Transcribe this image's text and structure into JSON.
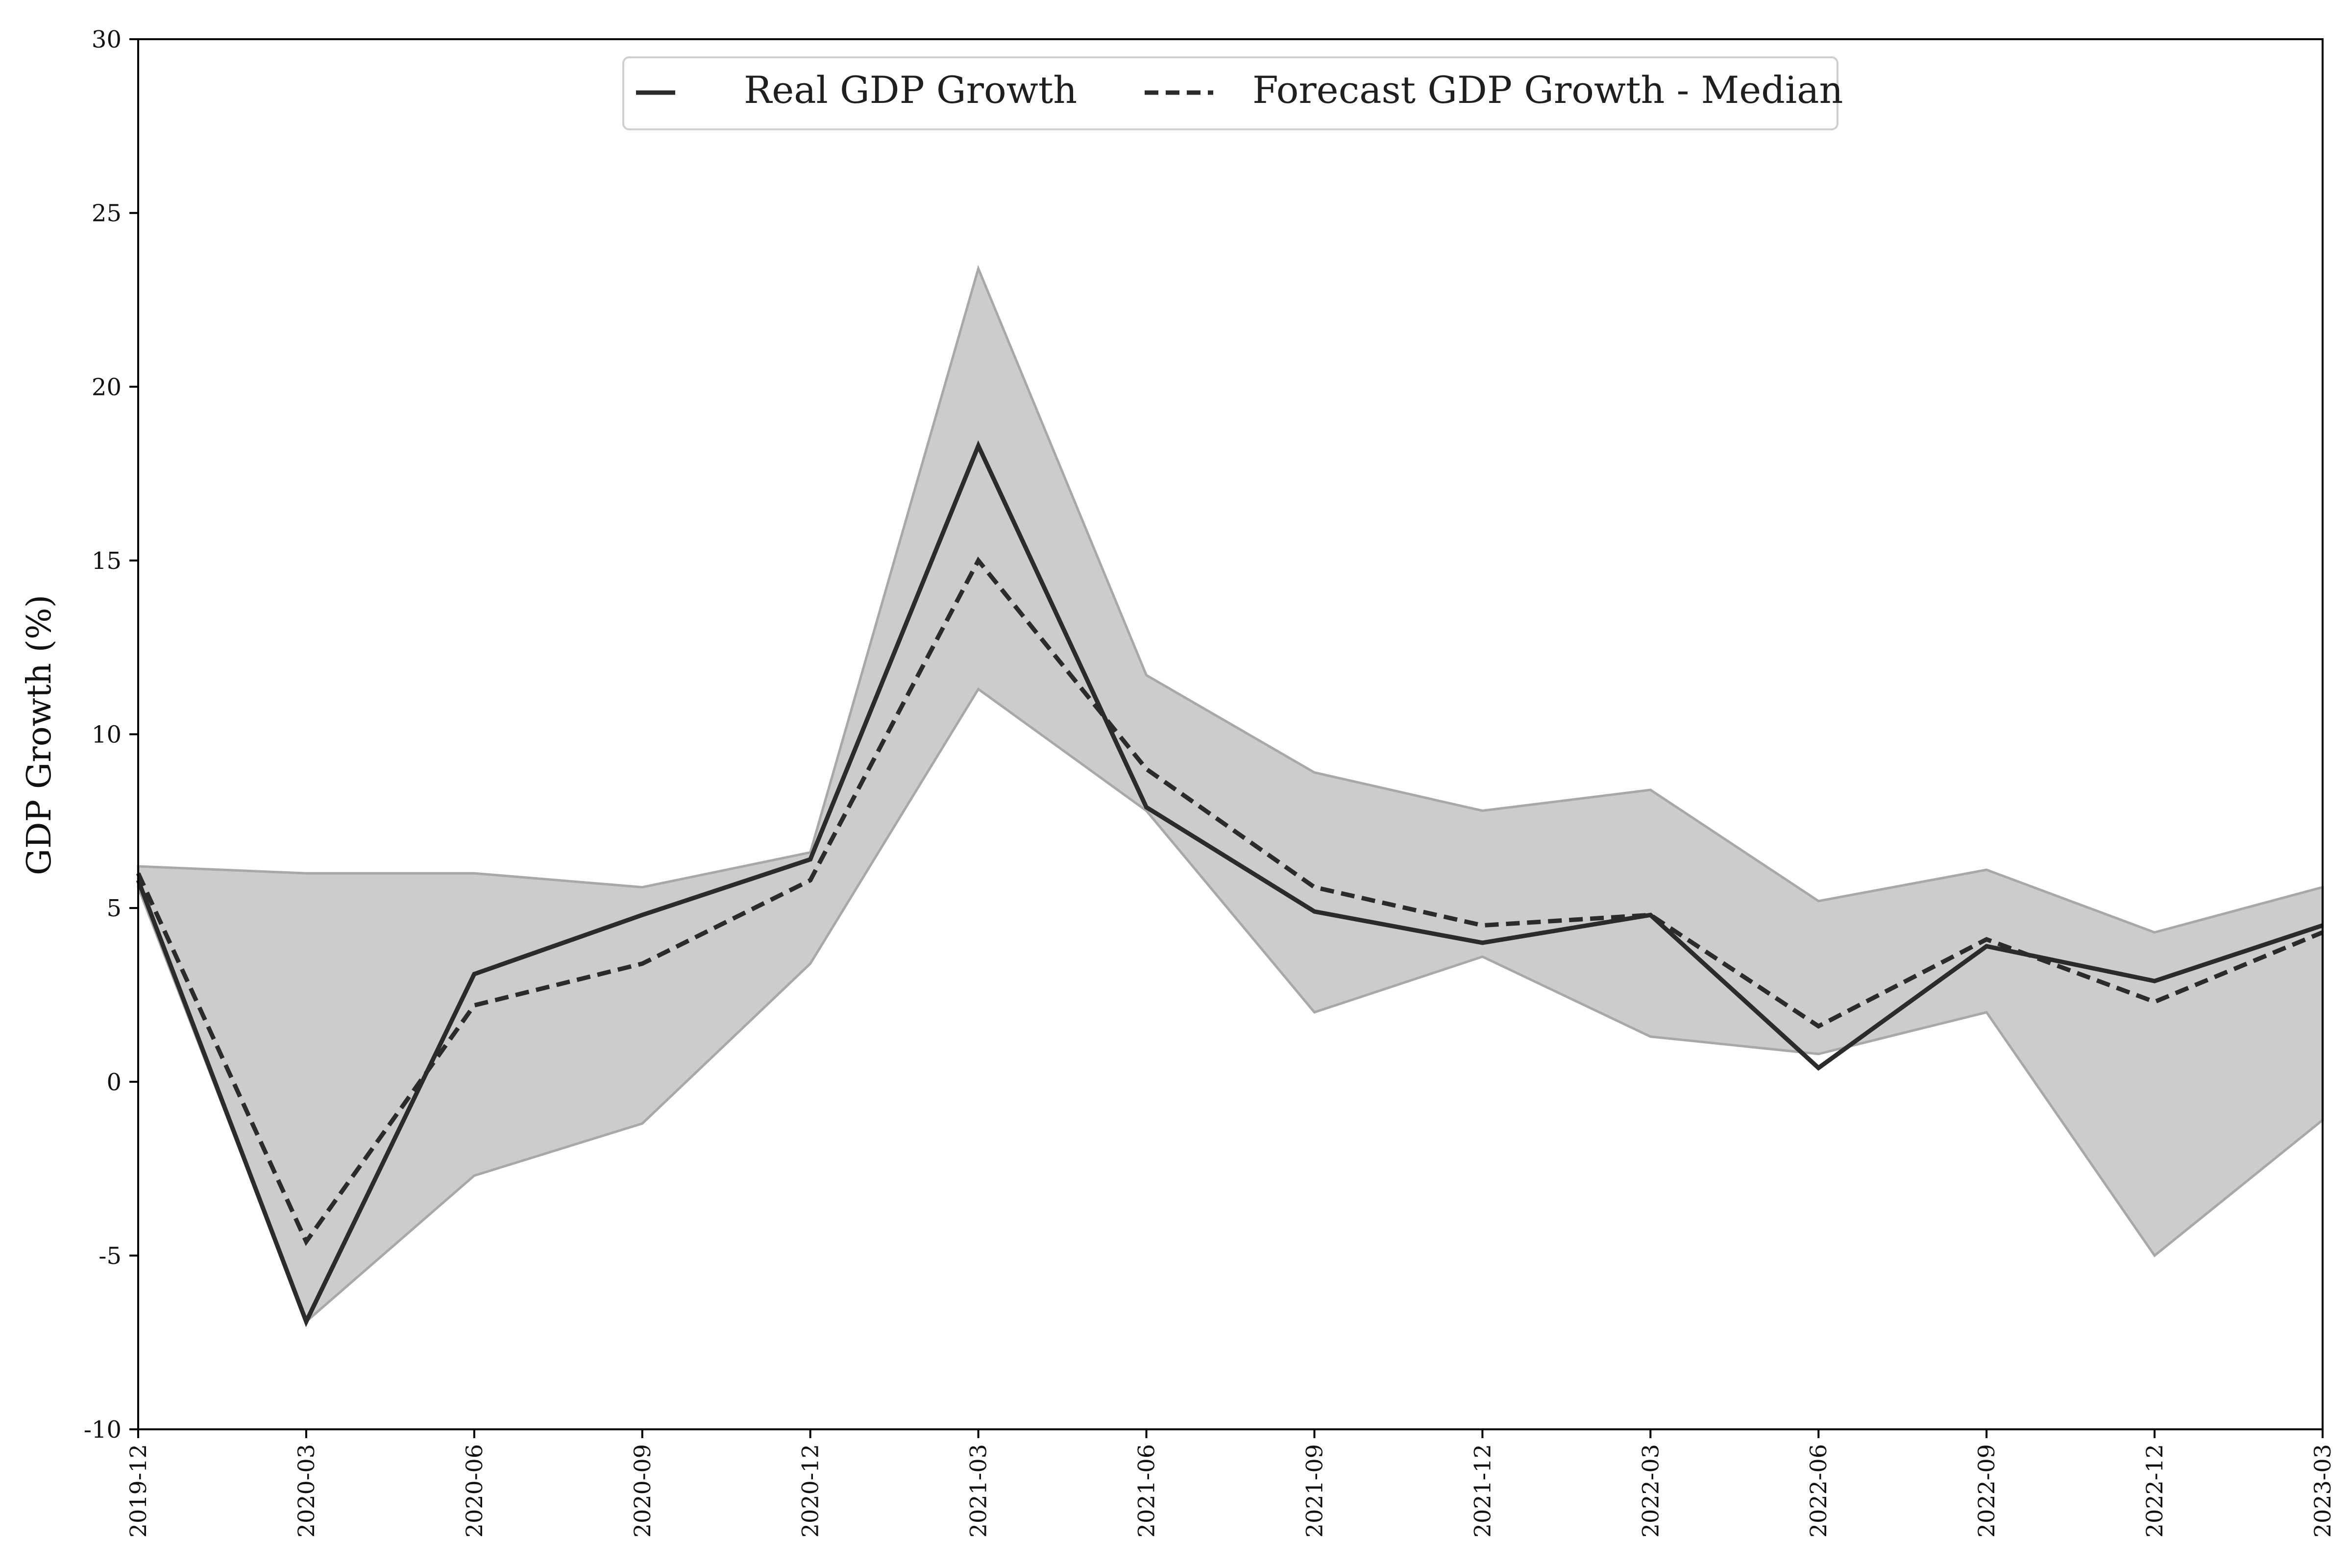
{
  "chart_data": {
    "type": "line",
    "title": "",
    "xlabel": "",
    "ylabel": "GDP Growth (%)",
    "x": [
      "2019-12",
      "2020-03",
      "2020-06",
      "2020-09",
      "2020-12",
      "2021-03",
      "2021-06",
      "2021-09",
      "2021-12",
      "2022-03",
      "2022-06",
      "2022-09",
      "2022-12",
      "2023-03"
    ],
    "ylim": [
      -10,
      30
    ],
    "yticks": [
      -10,
      -5,
      0,
      5,
      10,
      15,
      20,
      25,
      30
    ],
    "series": [
      {
        "name": "Real GDP Growth",
        "style": "solid",
        "values": [
          5.8,
          -6.9,
          3.1,
          4.8,
          6.4,
          18.3,
          7.9,
          4.9,
          4.0,
          4.8,
          0.4,
          3.9,
          2.9,
          4.5
        ]
      },
      {
        "name": "Forecast GDP Growth - Median",
        "style": "dashed",
        "values": [
          6.0,
          -4.6,
          2.2,
          3.4,
          5.8,
          15.0,
          9.0,
          5.6,
          4.5,
          4.8,
          1.6,
          4.1,
          2.3,
          4.3
        ]
      }
    ],
    "band": {
      "upper": [
        6.2,
        6.0,
        6.0,
        5.6,
        6.6,
        23.4,
        11.7,
        8.9,
        7.8,
        8.4,
        5.2,
        6.1,
        4.3,
        5.6
      ],
      "lower": [
        5.6,
        -6.9,
        -2.7,
        -1.2,
        3.4,
        11.3,
        7.8,
        2.0,
        3.6,
        1.3,
        0.8,
        2.0,
        -5.0,
        -1.1
      ]
    },
    "legend_position": "top-center",
    "grid": false
  },
  "colors": {
    "line": "#2b2b2b",
    "band_fill": "#cccccc",
    "band_edge": "#a8a8a8",
    "axis": "#000000",
    "background": "#ffffff"
  }
}
